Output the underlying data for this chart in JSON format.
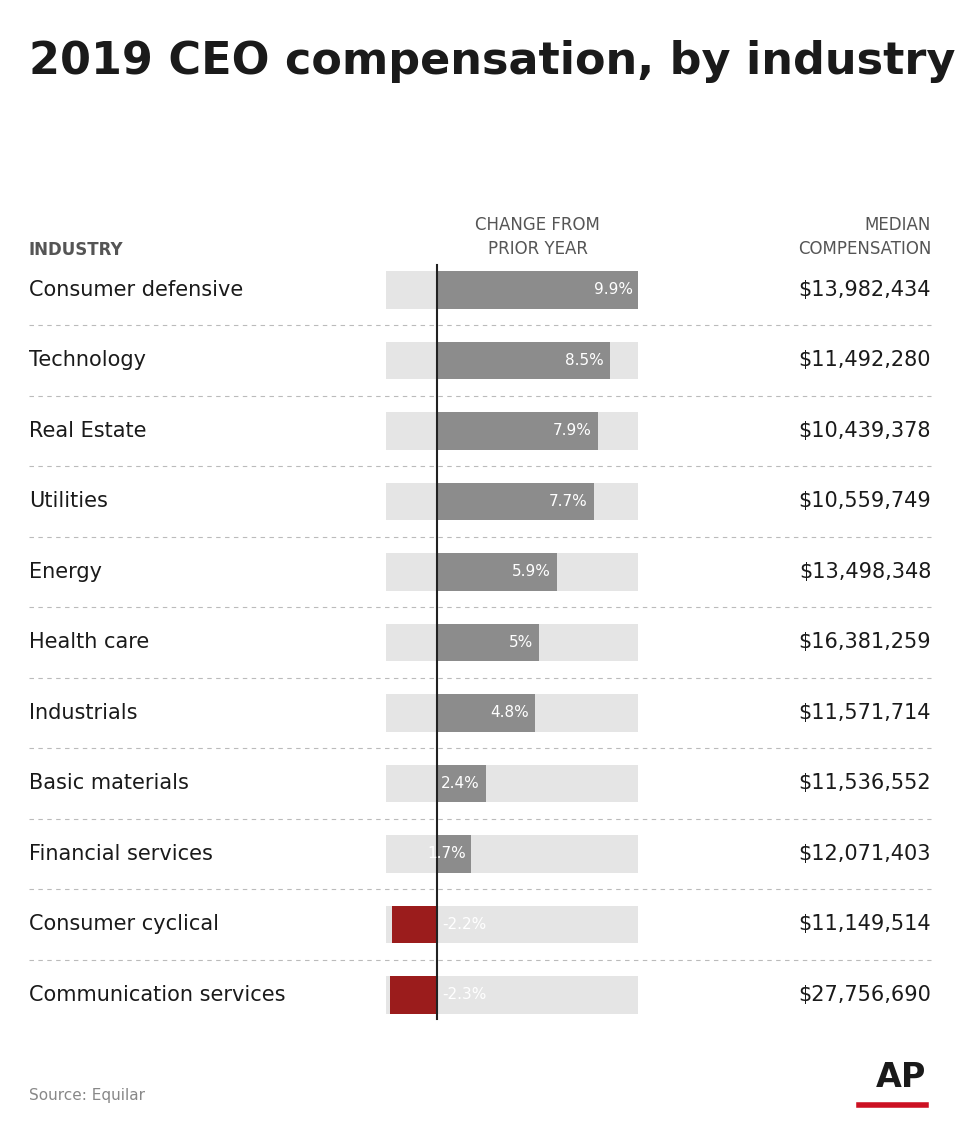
{
  "title": "2019 CEO compensation, by industry",
  "col_header1": "CHANGE FROM\nPRIOR YEAR",
  "col_header2": "MEDIAN\nCOMPENSATION",
  "col_label": "INDUSTRY",
  "industries": [
    "Consumer defensive",
    "Technology",
    "Real Estate",
    "Utilities",
    "Energy",
    "Health care",
    "Industrials",
    "Basic materials",
    "Financial services",
    "Consumer cyclical",
    "Communication services"
  ],
  "changes": [
    9.9,
    8.5,
    7.9,
    7.7,
    5.9,
    5.0,
    4.8,
    2.4,
    1.7,
    -2.2,
    -2.3
  ],
  "change_labels": [
    "9.9%",
    "8.5%",
    "7.9%",
    "7.7%",
    "5.9%",
    "5%",
    "4.8%",
    "2.4%",
    "1.7%",
    "-2.2%",
    "-2.3%"
  ],
  "compensations": [
    "$13,982,434",
    "$11,492,280",
    "$10,439,378",
    "$10,559,749",
    "$13,498,348",
    "$16,381,259",
    "$11,571,714",
    "$11,536,552",
    "$12,071,403",
    "$11,149,514",
    "$27,756,690"
  ],
  "positive_bar_color": "#8c8c8c",
  "negative_bar_color": "#9b1c1c",
  "background_bar_color": "#e5e5e5",
  "source_text": "Source: Equilar",
  "title_fontsize": 32,
  "label_fontsize": 15,
  "header_fontsize": 12,
  "bar_max": 9.9,
  "bg_color": "#ffffff"
}
